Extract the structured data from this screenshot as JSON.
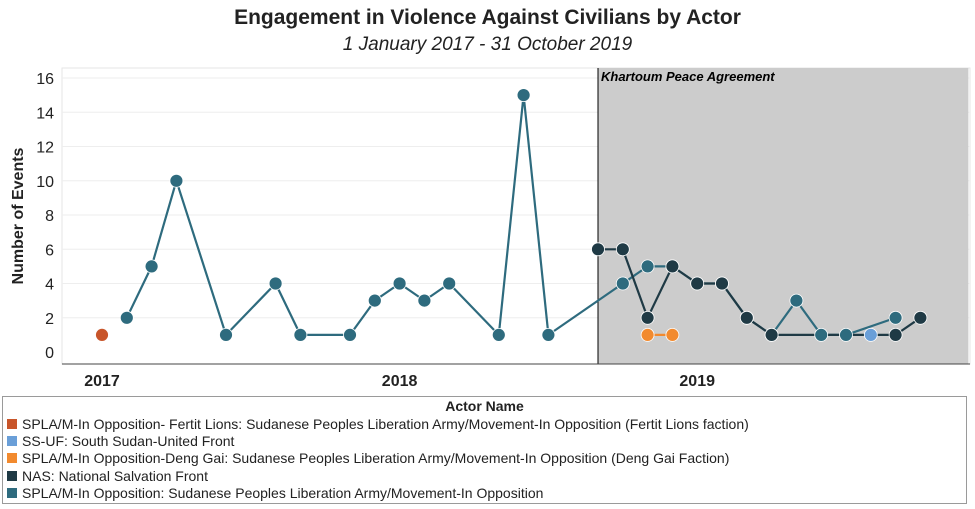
{
  "header": {
    "title": "Engagement in Violence Against Civilians by Actor",
    "subtitle": "1 January 2017 - 31 October 2019"
  },
  "chart_data": {
    "type": "line",
    "title": "Engagement in Violence Against Civilians by Actor",
    "subtitle": "1 January 2017 - 31 October 2019",
    "xlabel": "",
    "ylabel": "Number of Events",
    "x_ticks": [
      "2017",
      "2018",
      "2019"
    ],
    "y_ticks": [
      0,
      2,
      4,
      6,
      8,
      10,
      12,
      14,
      16
    ],
    "ylim": [
      0,
      16
    ],
    "grid": true,
    "annotation": {
      "text": "Khartoum Peace Agreement",
      "start": "2018-09",
      "end": "2019-10"
    },
    "series": [
      {
        "name": "SPLA/M-In Opposition- Fertit Lions: Sudanese Peoples Liberation Army/Movement-In Opposition (Fertit Lions faction)",
        "color": "#c8552a",
        "points": [
          {
            "x": "2017-01",
            "y": 1
          }
        ]
      },
      {
        "name": "SS-UF: South Sudan-United Front",
        "color": "#6a9fd8",
        "points": [
          {
            "x": "2019-08",
            "y": 1
          }
        ]
      },
      {
        "name": "SPLA/M-In Opposition-Deng Gai: Sudanese Peoples Liberation Army/Movement-In Opposition (Deng Gai Faction)",
        "color": "#f28a2e",
        "points": [
          {
            "x": "2018-11",
            "y": 1
          },
          {
            "x": "2018-12",
            "y": 1
          }
        ]
      },
      {
        "name": "NAS: National Salvation Front",
        "color": "#1f3a45",
        "points": [
          {
            "x": "2018-09",
            "y": 6
          },
          {
            "x": "2018-10",
            "y": 6
          },
          {
            "x": "2018-11",
            "y": 2
          },
          {
            "x": "2018-12",
            "y": 5
          },
          {
            "x": "2019-01",
            "y": 4
          },
          {
            "x": "2019-02",
            "y": 4
          },
          {
            "x": "2019-03",
            "y": 2
          },
          {
            "x": "2019-04",
            "y": 1
          },
          {
            "x": "2019-09",
            "y": 1
          },
          {
            "x": "2019-10",
            "y": 2
          }
        ]
      },
      {
        "name": "SPLA/M-In Opposition: Sudanese Peoples Liberation Army/Movement-In Opposition",
        "color": "#2e6b7e",
        "points": [
          {
            "x": "2017-02",
            "y": 2
          },
          {
            "x": "2017-03",
            "y": 5
          },
          {
            "x": "2017-04",
            "y": 10
          },
          {
            "x": "2017-06",
            "y": 1
          },
          {
            "x": "2017-08",
            "y": 4
          },
          {
            "x": "2017-09",
            "y": 1
          },
          {
            "x": "2017-11",
            "y": 1
          },
          {
            "x": "2017-12",
            "y": 3
          },
          {
            "x": "2018-01",
            "y": 4
          },
          {
            "x": "2018-02",
            "y": 3
          },
          {
            "x": "2018-03",
            "y": 4
          },
          {
            "x": "2018-05",
            "y": 1
          },
          {
            "x": "2018-06",
            "y": 15
          },
          {
            "x": "2018-07",
            "y": 1
          },
          {
            "x": "2018-10",
            "y": 4
          },
          {
            "x": "2018-11",
            "y": 5
          },
          {
            "x": "2018-12",
            "y": 5
          },
          {
            "x": "2019-01",
            "y": 4
          },
          {
            "x": "2019-02",
            "y": 4
          },
          {
            "x": "2019-03",
            "y": 2
          },
          {
            "x": "2019-04",
            "y": 1
          },
          {
            "x": "2019-05",
            "y": 3
          },
          {
            "x": "2019-06",
            "y": 1
          },
          {
            "x": "2019-07",
            "y": 1
          },
          {
            "x": "2019-09",
            "y": 2
          }
        ]
      }
    ]
  },
  "legend": {
    "title": "Actor Name",
    "items": [
      {
        "label": "SPLA/M-In Opposition- Fertit Lions: Sudanese Peoples Liberation Army/Movement-In Opposition (Fertit Lions faction)",
        "color": "#c8552a"
      },
      {
        "label": "SS-UF: South Sudan-United Front",
        "color": "#6a9fd8"
      },
      {
        "label": "SPLA/M-In Opposition-Deng Gai: Sudanese Peoples Liberation Army/Movement-In Opposition (Deng Gai Faction)",
        "color": "#f28a2e"
      },
      {
        "label": "NAS: National Salvation Front",
        "color": "#1f3a45"
      },
      {
        "label": "SPLA/M-In Opposition: Sudanese Peoples Liberation Army/Movement-In Opposition",
        "color": "#2e6b7e"
      }
    ]
  }
}
